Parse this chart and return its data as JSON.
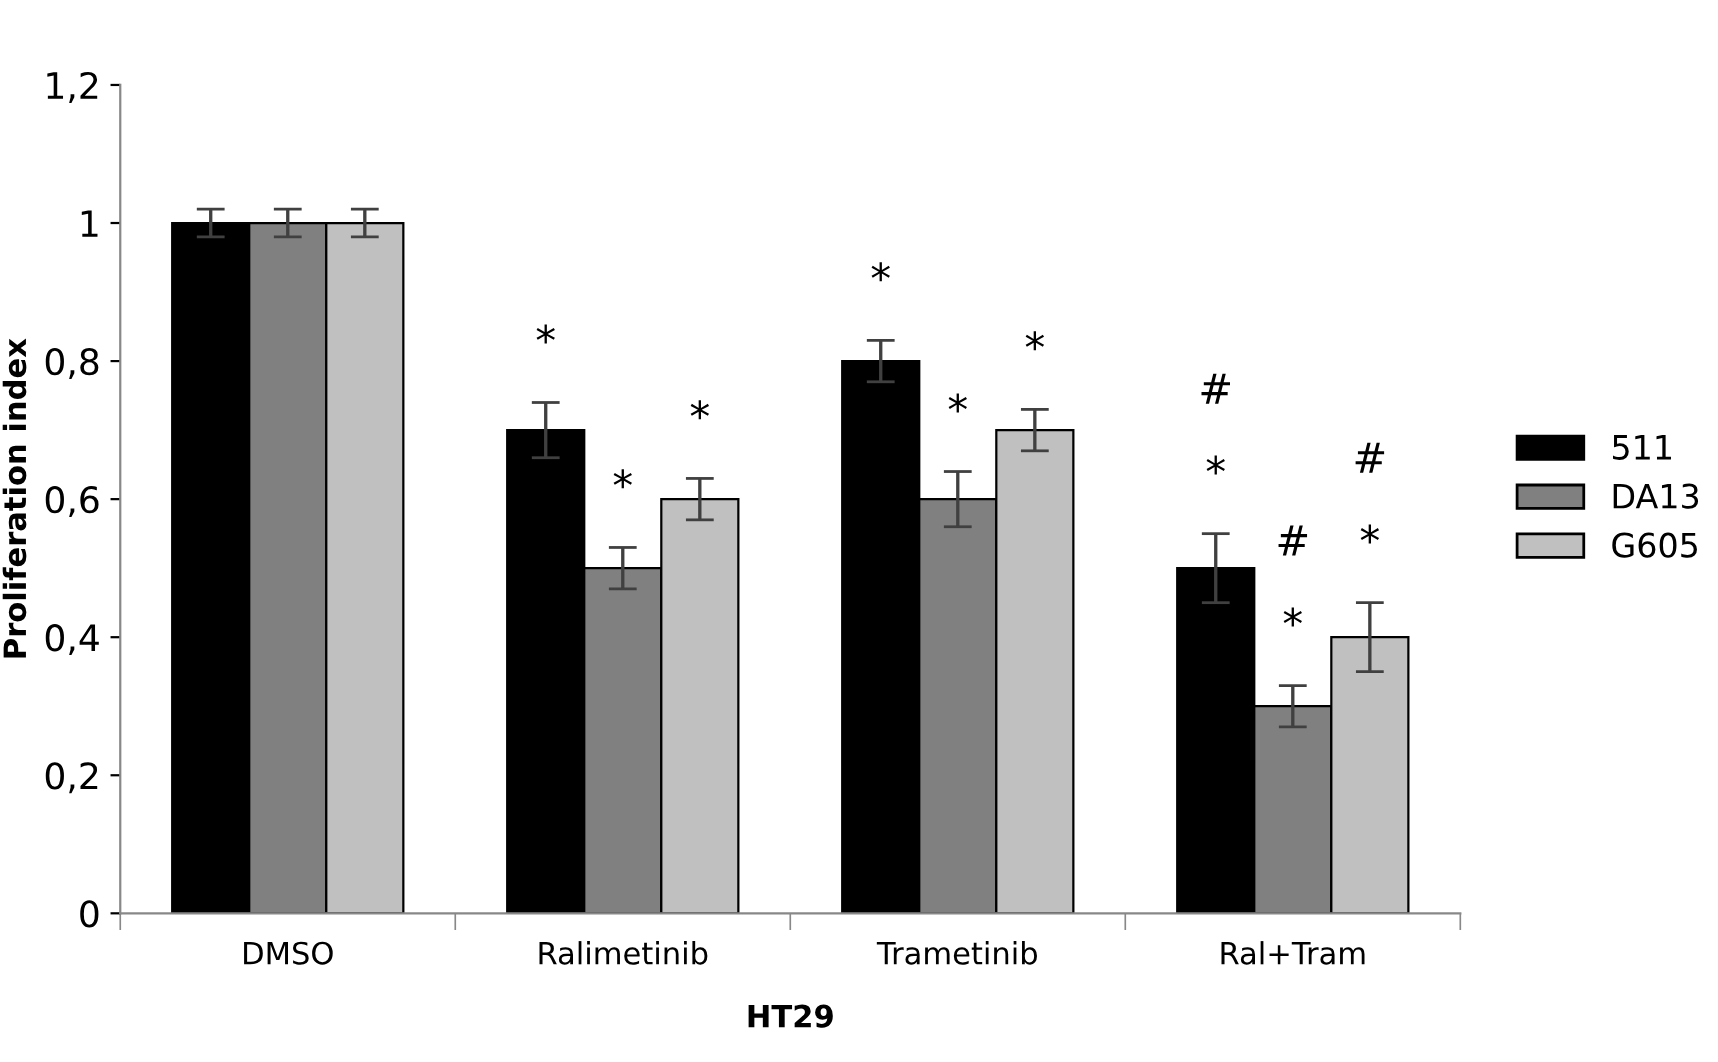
{
  "chart_data": {
    "type": "bar",
    "xlabel": "HT29",
    "ylabel": "Proliferation index",
    "categories": [
      "DMSO",
      "Ralimetinib",
      "Trametinib",
      "Ral+Tram"
    ],
    "series": [
      {
        "name": "511",
        "color": "#000000",
        "values": [
          1,
          0.7,
          0.8,
          0.5
        ],
        "errors": [
          0.02,
          0.04,
          0.03,
          0.05
        ]
      },
      {
        "name": "DA13",
        "color": "#808080",
        "values": [
          1,
          0.5,
          0.6,
          0.3
        ],
        "errors": [
          0.02,
          0.03,
          0.04,
          0.03
        ]
      },
      {
        "name": "G605",
        "color": "#c0c0c0",
        "values": [
          1,
          0.6,
          0.7,
          0.4
        ],
        "errors": [
          0.02,
          0.03,
          0.03,
          0.05
        ]
      }
    ],
    "ylim": [
      0,
      1.2
    ],
    "yticks": [
      0,
      {
        "value": 0.2,
        "label": "0,2"
      },
      {
        "value": 0.4,
        "label": "0,4"
      },
      {
        "value": 0.6,
        "label": "0,6"
      },
      {
        "value": 0.8,
        "label": "0,8"
      },
      1,
      {
        "value": 1.2,
        "label": "1,2"
      }
    ],
    "grid": false,
    "legend": "right",
    "annotations": [
      "*",
      "*",
      "*",
      "*",
      "*",
      "*",
      "*",
      "#",
      "*",
      "#",
      "*",
      "#"
    ]
  }
}
